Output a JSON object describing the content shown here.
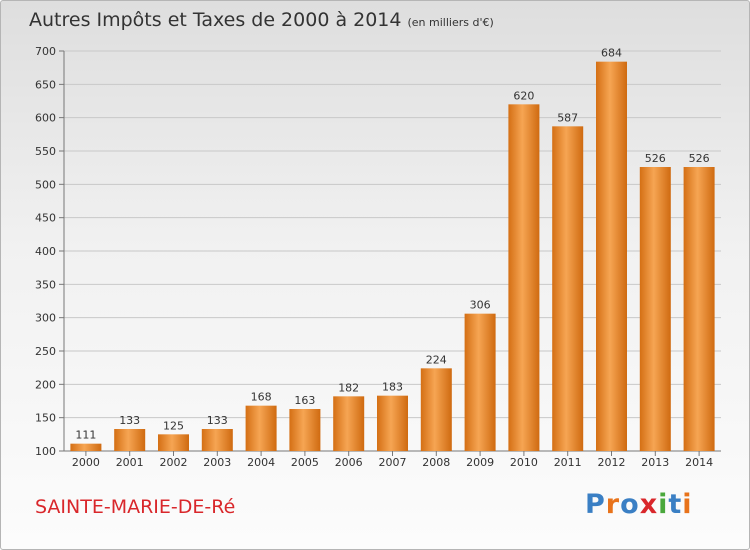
{
  "title": "Autres Impôts et Taxes de 2000 à 2014",
  "unit_note": "(en milliers d'€)",
  "place": "SAINTE-MARIE-DE-Ré",
  "logo": {
    "letters": [
      "P",
      "r",
      "o",
      "x",
      "i",
      "t",
      "i"
    ],
    "colors": [
      "#3a7fc4",
      "#e8731b",
      "#3a7fc4",
      "#d9272b",
      "#4aa83c",
      "#3a7fc4",
      "#e8731b"
    ]
  },
  "colors": {
    "bar": "#f19a3e",
    "title_red": "#d9272b"
  },
  "chart_data": {
    "type": "bar",
    "categories": [
      "2000",
      "2001",
      "2002",
      "2003",
      "2004",
      "2005",
      "2006",
      "2007",
      "2008",
      "2009",
      "2010",
      "2011",
      "2012",
      "2013",
      "2014"
    ],
    "values": [
      111,
      133,
      125,
      133,
      168,
      163,
      182,
      183,
      224,
      306,
      620,
      587,
      684,
      526,
      526
    ],
    "ylim": [
      100,
      700
    ],
    "yticks": [
      100,
      150,
      200,
      250,
      300,
      350,
      400,
      450,
      500,
      550,
      600,
      650,
      700
    ],
    "grid": true
  }
}
